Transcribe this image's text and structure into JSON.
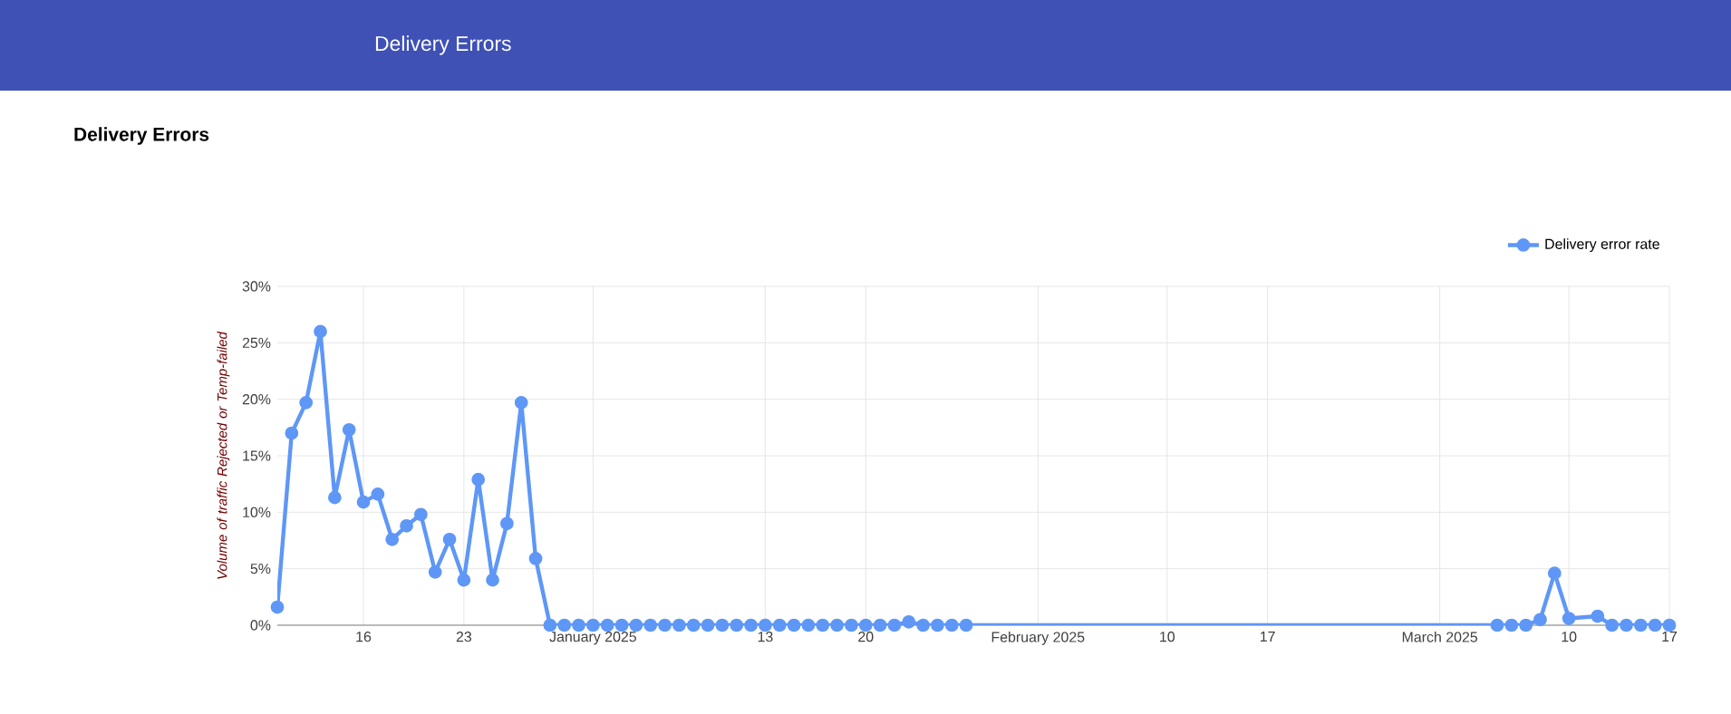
{
  "chart_data": {
    "type": "line",
    "title": "Delivery Errors",
    "ylabel": "Volume of traffic Rejected or Temp-failed",
    "annotations": [
      "Delivery Errors"
    ],
    "x": [
      "2024-12-10",
      "2024-12-11",
      "2024-12-12",
      "2024-12-13",
      "2024-12-14",
      "2024-12-15",
      "2024-12-16",
      "2024-12-17",
      "2024-12-18",
      "2024-12-19",
      "2024-12-20",
      "2024-12-21",
      "2024-12-22",
      "2024-12-23",
      "2024-12-24",
      "2024-12-25",
      "2024-12-26",
      "2024-12-27",
      "2024-12-28",
      "2024-12-29",
      "2024-12-30",
      "2024-12-31",
      "2025-01-01",
      "2025-01-02",
      "2025-01-03",
      "2025-01-04",
      "2025-01-05",
      "2025-01-06",
      "2025-01-07",
      "2025-01-08",
      "2025-01-09",
      "2025-01-10",
      "2025-01-11",
      "2025-01-12",
      "2025-01-13",
      "2025-01-14",
      "2025-01-15",
      "2025-01-16",
      "2025-01-17",
      "2025-01-18",
      "2025-01-19",
      "2025-01-20",
      "2025-01-21",
      "2025-01-22",
      "2025-01-23",
      "2025-01-24",
      "2025-01-25",
      "2025-01-26",
      "2025-01-27",
      "2025-03-05",
      "2025-03-06",
      "2025-03-07",
      "2025-03-08",
      "2025-03-09",
      "2025-03-10",
      "2025-03-12",
      "2025-03-13",
      "2025-03-14",
      "2025-03-15",
      "2025-03-16",
      "2025-03-17"
    ],
    "series": [
      {
        "name": "Delivery error rate",
        "color": "#5e97f6",
        "values": [
          1.6,
          17.0,
          19.7,
          26.0,
          11.3,
          17.3,
          10.9,
          11.6,
          7.6,
          8.8,
          9.8,
          4.7,
          7.6,
          4.0,
          12.9,
          4.0,
          9.0,
          19.7,
          5.9,
          0,
          0,
          0,
          0,
          0,
          0,
          0,
          0,
          0,
          0,
          0,
          0,
          0,
          0,
          0,
          0,
          0,
          0,
          0,
          0,
          0,
          0,
          0,
          0,
          0,
          0.3,
          0,
          0,
          0,
          0,
          0,
          0,
          0,
          0.5,
          4.6,
          0.6,
          0.8,
          0,
          0,
          0,
          0,
          0
        ]
      }
    ],
    "xlim": [
      "2024-12-10",
      "2025-03-17"
    ],
    "xticks": [
      {
        "value": "2024-12-16",
        "label": "16"
      },
      {
        "value": "2024-12-23",
        "label": "23"
      },
      {
        "value": "2025-01-01",
        "label": "January 2025"
      },
      {
        "value": "2025-01-13",
        "label": "13"
      },
      {
        "value": "2025-01-20",
        "label": "20"
      },
      {
        "value": "2025-02-01",
        "label": "February 2025"
      },
      {
        "value": "2025-02-10",
        "label": "10"
      },
      {
        "value": "2025-02-17",
        "label": "17"
      },
      {
        "value": "2025-03-01",
        "label": "March 2025"
      },
      {
        "value": "2025-03-10",
        "label": "10"
      },
      {
        "value": "2025-03-17",
        "label": "17"
      }
    ],
    "ylim": [
      0,
      30
    ],
    "yticks": [
      {
        "value": 0,
        "label": "0%"
      },
      {
        "value": 5,
        "label": "5%"
      },
      {
        "value": 10,
        "label": "10%"
      },
      {
        "value": 15,
        "label": "15%"
      },
      {
        "value": 20,
        "label": "20%"
      },
      {
        "value": 25,
        "label": "25%"
      },
      {
        "value": 30,
        "label": "30%"
      }
    ],
    "grid": true,
    "legend": "top right",
    "marker": "circle",
    "line_style": "solid"
  }
}
